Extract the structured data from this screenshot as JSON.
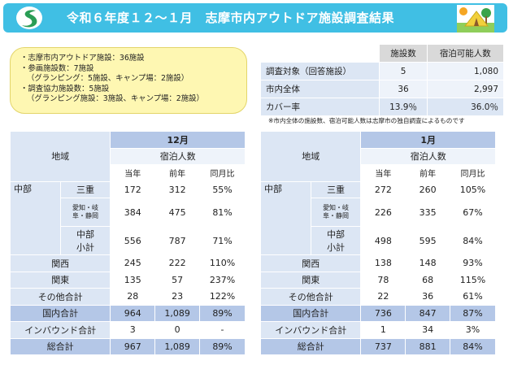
{
  "header": {
    "title": "令和６年度１２～１月　志摩市内アウトドア施設調査結果"
  },
  "notes": [
    "・志摩市内アウトドア施設：36施設",
    "・参画施設数：7施設",
    "（グランピング：5施設、キャンプ場：2施設）",
    "・調査協力施設数：5施設",
    "（グランピング施設：3施設、キャンプ場：2施設）"
  ],
  "summary": {
    "col_facilities": "施設数",
    "col_capacity": "宿泊可能人数",
    "rows": [
      {
        "label": "調査対象（回答施設）",
        "facilities": "5",
        "capacity": "1,080"
      },
      {
        "label": "市内全体",
        "facilities": "36",
        "capacity": "2,997"
      },
      {
        "label": "カバー率",
        "facilities": "13.9％",
        "capacity": "36.0％"
      }
    ],
    "footnote": "※市内全体の施設数、宿泊可能人数は志摩市の独自調査によるものです"
  },
  "tables": {
    "area_label": "地域",
    "guests_label": "宿泊人数",
    "col_current": "当年",
    "col_prev": "前年",
    "col_ratio": "同月比",
    "chubu": "中部",
    "mie": "三重",
    "aichi_1": "愛知・岐",
    "aichi_2": "阜・静岡",
    "chubu_sub_1": "中部",
    "chubu_sub_2": "小計",
    "kansai": "関西",
    "kanto": "関東",
    "others": "その他合計",
    "domestic": "国内合計",
    "inbound": "インバウンド合計",
    "total": "総合計",
    "dec": {
      "month": "12月",
      "mie": [
        "172",
        "312",
        "55%"
      ],
      "aichi": [
        "384",
        "475",
        "81%"
      ],
      "chubu_sub": [
        "556",
        "787",
        "71%"
      ],
      "kansai": [
        "245",
        "222",
        "110%"
      ],
      "kanto": [
        "135",
        "57",
        "237%"
      ],
      "others": [
        "28",
        "23",
        "122%"
      ],
      "domestic": [
        "964",
        "1,089",
        "89%"
      ],
      "inbound": [
        "3",
        "0",
        "-"
      ],
      "total": [
        "967",
        "1,089",
        "89%"
      ]
    },
    "jan": {
      "month": "1月",
      "mie": [
        "272",
        "260",
        "105%"
      ],
      "aichi": [
        "226",
        "335",
        "67%"
      ],
      "chubu_sub": [
        "498",
        "595",
        "84%"
      ],
      "kansai": [
        "138",
        "148",
        "93%"
      ],
      "kanto": [
        "78",
        "68",
        "115%"
      ],
      "others": [
        "22",
        "36",
        "61%"
      ],
      "domestic": [
        "736",
        "847",
        "87%"
      ],
      "inbound": [
        "1",
        "34",
        "3%"
      ],
      "total": [
        "737",
        "881",
        "84%"
      ]
    }
  },
  "colors": {
    "header": "#40bfe4",
    "note_box": "#fef7b2",
    "month_header": "#b4c7e7",
    "label_cell": "#dce6f4",
    "logo": "#2a9d55"
  },
  "icons": [
    "shima-logo-icon",
    "glamping-tent-icon"
  ]
}
